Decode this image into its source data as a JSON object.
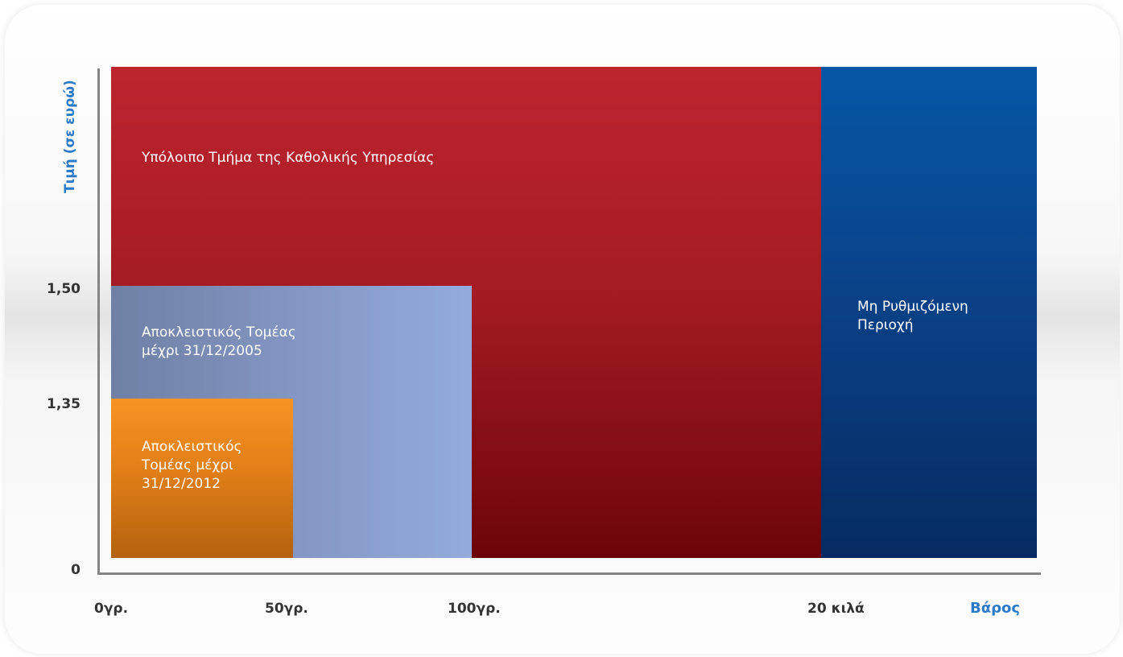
{
  "chart_data": {
    "type": "area",
    "ylabel": "Τιμή (σε ευρώ)",
    "xlabel": "Βάρος",
    "x_ticks": [
      "0γρ.",
      "50γρ.",
      "100γρ.",
      "20 κιλά"
    ],
    "y_ticks": [
      "0",
      "1,35",
      "1,50"
    ],
    "regions": [
      {
        "name": "Υπόλοιπο Τμήμα της Καθολικής Υπηρεσίας",
        "x_from": "0γρ.",
        "x_to": "20 κιλά",
        "color": "#b0202a"
      },
      {
        "name": "Μη Ρυθμιζόμενη\nΠεριοχή",
        "x_from": "20 κιλά",
        "x_to": null,
        "color": "#0a4288"
      },
      {
        "name": "Αποκλειστικός Τομέας\nμέχρι 31/12/2005",
        "x_from": "0γρ.",
        "x_to": "100γρ.",
        "y_to": "1,50",
        "color": "#8598c5"
      },
      {
        "name": "Αποκλειστικός\nΤομέας μέχρι\n31/12/2012",
        "x_from": "0γρ.",
        "x_to": "50γρ.",
        "y_to": "1,35",
        "color": "#e8861c"
      }
    ]
  }
}
